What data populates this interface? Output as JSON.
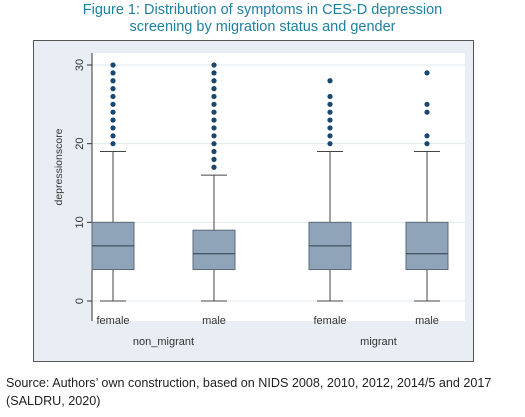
{
  "figure": {
    "title_line1": "Figure 1: Distribution of symptoms in CES-D depression",
    "title_line2": "screening by migration status and gender",
    "source_line1": "Source: Authors’ own construction, based on NIDS 2008, 2010, 2012, 2014/5 and 2017",
    "source_line2": "(SALDRU, 2020)"
  },
  "colors": {
    "title": "#1e7fa0",
    "box_fill": "#8fa4b8",
    "outlier": "#1a476f",
    "plot_bg": "#ffffff",
    "outer_bg": "#e8eef3",
    "grid": "#e3e8ec"
  },
  "chart_data": {
    "type": "box",
    "ylabel": "depressionscore",
    "ylim": [
      0,
      30
    ],
    "yticks": [
      0,
      10,
      20,
      30
    ],
    "yticklabels": [
      "0",
      "10",
      "20",
      "30"
    ],
    "grid": true,
    "groups": [
      {
        "name": "non_migrant",
        "boxes": [
          {
            "label": "female",
            "min": 0,
            "q1": 4,
            "median": 7,
            "q3": 10,
            "max": 19,
            "outliers": [
              20,
              21,
              22,
              23,
              24,
              25,
              26,
              27,
              28,
              29,
              30
            ]
          },
          {
            "label": "male",
            "min": 0,
            "q1": 4,
            "median": 6,
            "q3": 9,
            "max": 16,
            "outliers": [
              17,
              18,
              19,
              20,
              21,
              22,
              23,
              24,
              25,
              26,
              27,
              28,
              29,
              30
            ]
          }
        ]
      },
      {
        "name": "migrant",
        "boxes": [
          {
            "label": "female",
            "min": 0,
            "q1": 4,
            "median": 7,
            "q3": 10,
            "max": 19,
            "outliers": [
              20,
              21,
              22,
              23,
              24,
              25,
              26,
              28
            ]
          },
          {
            "label": "male",
            "min": 0,
            "q1": 4,
            "median": 6,
            "q3": 10,
            "max": 19,
            "outliers": [
              20,
              21,
              24,
              25,
              29
            ]
          }
        ]
      }
    ]
  }
}
